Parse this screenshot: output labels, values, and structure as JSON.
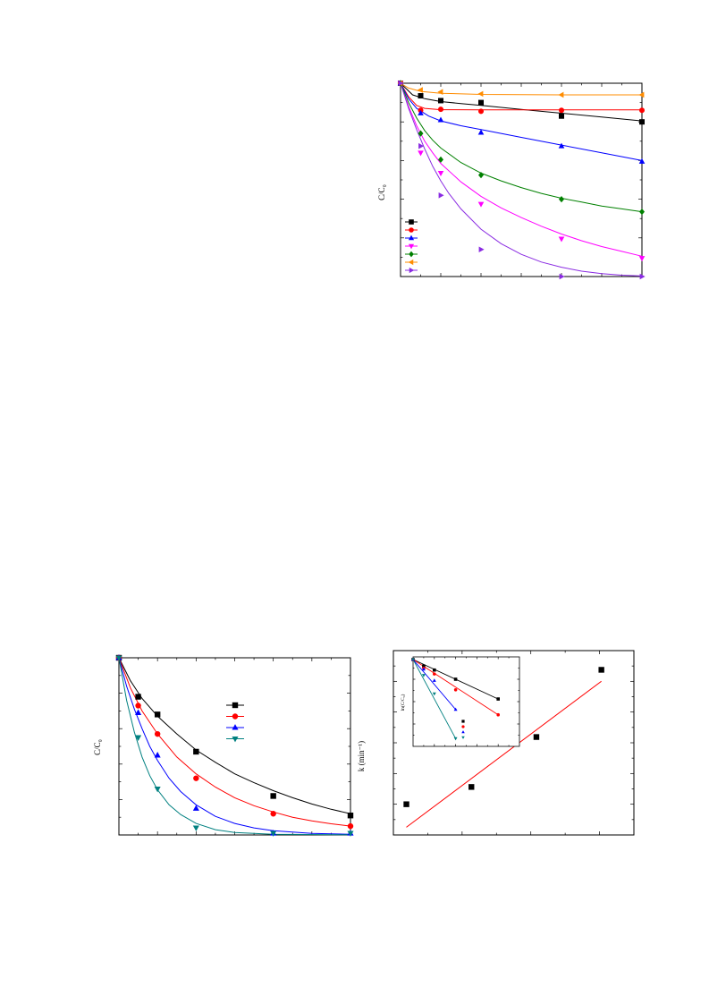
{
  "chart_data": [
    {
      "id": "top-right",
      "type": "scatter",
      "ylabel": "C/C₀",
      "series": [
        {
          "color": "#000000",
          "marker": "square",
          "points": [
            [
              0,
              1.0
            ],
            [
              5,
              0.935
            ],
            [
              10,
              0.91
            ],
            [
              20,
              0.9
            ],
            [
              40,
              0.83
            ],
            [
              60,
              0.8
            ]
          ],
          "curve": [
            [
              0,
              1.0
            ],
            [
              3,
              0.94
            ],
            [
              6,
              0.92
            ],
            [
              10,
              0.905
            ],
            [
              15,
              0.895
            ],
            [
              20,
              0.885
            ],
            [
              30,
              0.865
            ],
            [
              40,
              0.845
            ],
            [
              50,
              0.825
            ],
            [
              60,
              0.805
            ]
          ]
        },
        {
          "color": "#ff0000",
          "marker": "circle",
          "points": [
            [
              0,
              1.0
            ],
            [
              5,
              0.86
            ],
            [
              10,
              0.865
            ],
            [
              20,
              0.855
            ],
            [
              40,
              0.86
            ],
            [
              60,
              0.86
            ]
          ],
          "curve": [
            [
              0,
              1.0
            ],
            [
              2,
              0.93
            ],
            [
              4,
              0.885
            ],
            [
              6,
              0.87
            ],
            [
              10,
              0.863
            ],
            [
              20,
              0.862
            ],
            [
              40,
              0.862
            ],
            [
              60,
              0.862
            ]
          ]
        },
        {
          "color": "#0000ff",
          "marker": "triangle-up",
          "points": [
            [
              0,
              1.0
            ],
            [
              5,
              0.845
            ],
            [
              10,
              0.81
            ],
            [
              20,
              0.745
            ],
            [
              40,
              0.675
            ],
            [
              60,
              0.595
            ]
          ],
          "curve": [
            [
              0,
              1.0
            ],
            [
              2,
              0.92
            ],
            [
              4,
              0.87
            ],
            [
              7,
              0.83
            ],
            [
              10,
              0.805
            ],
            [
              15,
              0.78
            ],
            [
              20,
              0.76
            ],
            [
              30,
              0.72
            ],
            [
              40,
              0.68
            ],
            [
              50,
              0.64
            ],
            [
              60,
              0.6
            ]
          ]
        },
        {
          "color": "#ff00ff",
          "marker": "triangle-down",
          "points": [
            [
              0,
              1.0
            ],
            [
              5,
              0.64
            ],
            [
              10,
              0.535
            ],
            [
              20,
              0.375
            ],
            [
              40,
              0.195
            ],
            [
              60,
              0.095
            ]
          ],
          "curve": [
            [
              0,
              1.0
            ],
            [
              2,
              0.88
            ],
            [
              4,
              0.78
            ],
            [
              6,
              0.7
            ],
            [
              8,
              0.64
            ],
            [
              10,
              0.585
            ],
            [
              15,
              0.49
            ],
            [
              20,
              0.415
            ],
            [
              25,
              0.355
            ],
            [
              30,
              0.305
            ],
            [
              35,
              0.26
            ],
            [
              40,
              0.22
            ],
            [
              45,
              0.185
            ],
            [
              50,
              0.155
            ],
            [
              55,
              0.13
            ],
            [
              60,
              0.105
            ]
          ]
        },
        {
          "color": "#008000",
          "marker": "diamond",
          "points": [
            [
              0,
              1.0
            ],
            [
              5,
              0.74
            ],
            [
              10,
              0.605
            ],
            [
              20,
              0.525
            ],
            [
              40,
              0.4
            ],
            [
              60,
              0.335
            ]
          ],
          "curve": [
            [
              0,
              1.0
            ],
            [
              2,
              0.9
            ],
            [
              4,
              0.82
            ],
            [
              6,
              0.755
            ],
            [
              8,
              0.705
            ],
            [
              10,
              0.665
            ],
            [
              15,
              0.59
            ],
            [
              20,
              0.535
            ],
            [
              25,
              0.495
            ],
            [
              30,
              0.46
            ],
            [
              35,
              0.43
            ],
            [
              40,
              0.405
            ],
            [
              45,
              0.385
            ],
            [
              50,
              0.365
            ],
            [
              55,
              0.35
            ],
            [
              60,
              0.335
            ]
          ]
        },
        {
          "color": "#ff8c00",
          "marker": "triangle-left",
          "points": [
            [
              0,
              1.0
            ],
            [
              5,
              0.965
            ],
            [
              10,
              0.955
            ],
            [
              20,
              0.945
            ],
            [
              40,
              0.94
            ],
            [
              60,
              0.94
            ]
          ],
          "curve": [
            [
              0,
              1.0
            ],
            [
              2,
              0.975
            ],
            [
              5,
              0.958
            ],
            [
              10,
              0.948
            ],
            [
              20,
              0.942
            ],
            [
              40,
              0.94
            ],
            [
              60,
              0.94
            ]
          ]
        },
        {
          "color": "#8a2be2",
          "marker": "triangle-right",
          "points": [
            [
              0,
              1.0
            ],
            [
              5,
              0.675
            ],
            [
              10,
              0.42
            ],
            [
              20,
              0.14
            ],
            [
              40,
              0.0
            ],
            [
              60,
              0.0
            ]
          ],
          "curve": [
            [
              0,
              1.0
            ],
            [
              2,
              0.87
            ],
            [
              4,
              0.76
            ],
            [
              6,
              0.66
            ],
            [
              8,
              0.57
            ],
            [
              10,
              0.495
            ],
            [
              12,
              0.43
            ],
            [
              15,
              0.35
            ],
            [
              20,
              0.245
            ],
            [
              25,
              0.17
            ],
            [
              30,
              0.115
            ],
            [
              35,
              0.075
            ],
            [
              40,
              0.048
            ],
            [
              45,
              0.028
            ],
            [
              50,
              0.015
            ],
            [
              55,
              0.007
            ],
            [
              60,
              0.003
            ]
          ]
        }
      ]
    },
    {
      "id": "bottom-left",
      "type": "scatter",
      "ylabel": "C/C₀",
      "series": [
        {
          "color": "#000000",
          "marker": "square",
          "points": [
            [
              0,
              1.0
            ],
            [
              5,
              0.78
            ],
            [
              10,
              0.68
            ],
            [
              20,
              0.47
            ],
            [
              40,
              0.22
            ],
            [
              60,
              0.11
            ]
          ],
          "curve": [
            [
              0,
              1.0
            ],
            [
              3,
              0.87
            ],
            [
              6,
              0.77
            ],
            [
              10,
              0.67
            ],
            [
              15,
              0.57
            ],
            [
              20,
              0.48
            ],
            [
              25,
              0.41
            ],
            [
              30,
              0.345
            ],
            [
              35,
              0.295
            ],
            [
              40,
              0.25
            ],
            [
              45,
              0.21
            ],
            [
              50,
              0.175
            ],
            [
              55,
              0.145
            ],
            [
              60,
              0.12
            ]
          ]
        },
        {
          "color": "#ff0000",
          "marker": "circle",
          "points": [
            [
              0,
              1.0
            ],
            [
              5,
              0.73
            ],
            [
              10,
              0.57
            ],
            [
              20,
              0.32
            ],
            [
              40,
              0.12
            ],
            [
              60,
              0.05
            ]
          ],
          "curve": [
            [
              0,
              1.0
            ],
            [
              3,
              0.83
            ],
            [
              6,
              0.7
            ],
            [
              10,
              0.57
            ],
            [
              15,
              0.44
            ],
            [
              20,
              0.345
            ],
            [
              25,
              0.27
            ],
            [
              30,
              0.21
            ],
            [
              35,
              0.165
            ],
            [
              40,
              0.13
            ],
            [
              45,
              0.1
            ],
            [
              50,
              0.08
            ],
            [
              55,
              0.063
            ],
            [
              60,
              0.05
            ]
          ]
        },
        {
          "color": "#0000ff",
          "marker": "triangle-up",
          "points": [
            [
              0,
              1.0
            ],
            [
              5,
              0.69
            ],
            [
              10,
              0.45
            ],
            [
              20,
              0.15
            ],
            [
              40,
              0.01
            ],
            [
              60,
              0.01
            ]
          ],
          "curve": [
            [
              0,
              1.0
            ],
            [
              2,
              0.84
            ],
            [
              4,
              0.71
            ],
            [
              6,
              0.6
            ],
            [
              8,
              0.5
            ],
            [
              10,
              0.42
            ],
            [
              13,
              0.32
            ],
            [
              16,
              0.245
            ],
            [
              20,
              0.17
            ],
            [
              25,
              0.105
            ],
            [
              30,
              0.065
            ],
            [
              35,
              0.04
            ],
            [
              40,
              0.024
            ],
            [
              50,
              0.009
            ],
            [
              60,
              0.004
            ]
          ]
        },
        {
          "color": "#008080",
          "marker": "triangle-down",
          "points": [
            [
              0,
              1.0
            ],
            [
              5,
              0.55
            ],
            [
              10,
              0.26
            ],
            [
              20,
              0.04
            ],
            [
              40,
              0.01
            ],
            [
              60,
              0.01
            ]
          ],
          "curve": [
            [
              0,
              1.0
            ],
            [
              2,
              0.76
            ],
            [
              4,
              0.58
            ],
            [
              6,
              0.44
            ],
            [
              8,
              0.335
            ],
            [
              10,
              0.255
            ],
            [
              13,
              0.17
            ],
            [
              16,
              0.115
            ],
            [
              20,
              0.065
            ],
            [
              25,
              0.03
            ],
            [
              30,
              0.014
            ],
            [
              40,
              0.004
            ],
            [
              60,
              0.001
            ]
          ]
        }
      ]
    },
    {
      "id": "bottom-right",
      "type": "scatter",
      "ylabel": "k (min⁻¹)",
      "series": [
        {
          "color": "#000000",
          "marker": "square",
          "points": [
            [
              1,
              0.012
            ],
            [
              2,
              0.021
            ],
            [
              3,
              0.047
            ],
            [
              4,
              0.082
            ]
          ]
        },
        {
          "color": "#ff0000",
          "marker": "none",
          "line": [
            [
              1,
              0.0
            ],
            [
              4,
              0.076
            ]
          ]
        }
      ],
      "inset": {
        "ylabel": "ln(C/C₀)",
        "series": [
          {
            "color": "#000000",
            "marker": "square",
            "points": [
              [
                0,
                0
              ],
              [
                5,
                -0.25
              ],
              [
                10,
                -0.4
              ],
              [
                20,
                -0.75
              ],
              [
                40,
                -1.5
              ]
            ],
            "line": [
              [
                0,
                0
              ],
              [
                40,
                -1.5
              ]
            ]
          },
          {
            "color": "#ff0000",
            "marker": "circle",
            "points": [
              [
                0,
                0
              ],
              [
                5,
                -0.33
              ],
              [
                10,
                -0.55
              ],
              [
                20,
                -1.15
              ],
              [
                40,
                -2.1
              ]
            ],
            "line": [
              [
                0,
                0
              ],
              [
                40,
                -2.1
              ]
            ]
          },
          {
            "color": "#0000ff",
            "marker": "triangle-up",
            "points": [
              [
                0,
                0
              ],
              [
                5,
                -0.37
              ],
              [
                10,
                -0.8
              ],
              [
                20,
                -1.9
              ]
            ],
            "line": [
              [
                0,
                0
              ],
              [
                20,
                -1.9
              ]
            ]
          },
          {
            "color": "#008080",
            "marker": "triangle-down",
            "points": [
              [
                0,
                0
              ],
              [
                5,
                -0.6
              ],
              [
                10,
                -1.3
              ],
              [
                20,
                -3.0
              ]
            ],
            "line": [
              [
                0,
                0
              ],
              [
                20,
                -3.0
              ]
            ]
          }
        ]
      }
    }
  ]
}
